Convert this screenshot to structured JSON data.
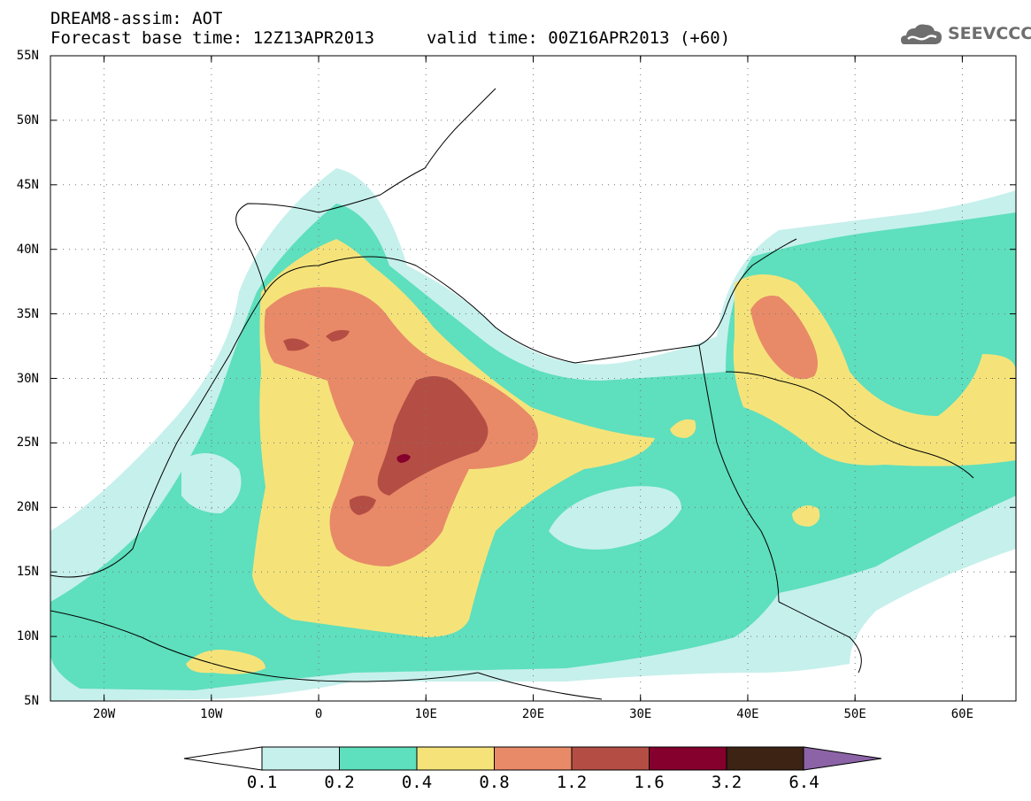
{
  "title": {
    "line1": "DREAM8-assim: AOT",
    "base_time": "Forecast base time: 12Z13APR2013",
    "valid_time": "valid time: 00Z16APR2013 (+60)"
  },
  "logo": {
    "text": "SEEVCCC",
    "icon": "cloud-logo-icon"
  },
  "map": {
    "lat_labels": [
      "55N",
      "50N",
      "45N",
      "40N",
      "35N",
      "30N",
      "25N",
      "20N",
      "15N",
      "10N",
      "5N"
    ],
    "lon_labels": [
      "20W",
      "10W",
      "0",
      "10E",
      "20E",
      "30E",
      "40E",
      "50E",
      "60E"
    ],
    "lat_range": [
      5,
      55
    ],
    "lon_range": [
      -25,
      65
    ],
    "grid": true
  },
  "colorbar": {
    "levels": [
      "0.1",
      "0.2",
      "0.4",
      "0.8",
      "1.2",
      "1.6",
      "3.2",
      "6.4"
    ],
    "colors": [
      "#ffffff",
      "#c6f0ec",
      "#5edfbd",
      "#f5e37a",
      "#e88a68",
      "#b44e44",
      "#85002c",
      "#3d2314",
      "#8b63a6"
    ]
  }
}
